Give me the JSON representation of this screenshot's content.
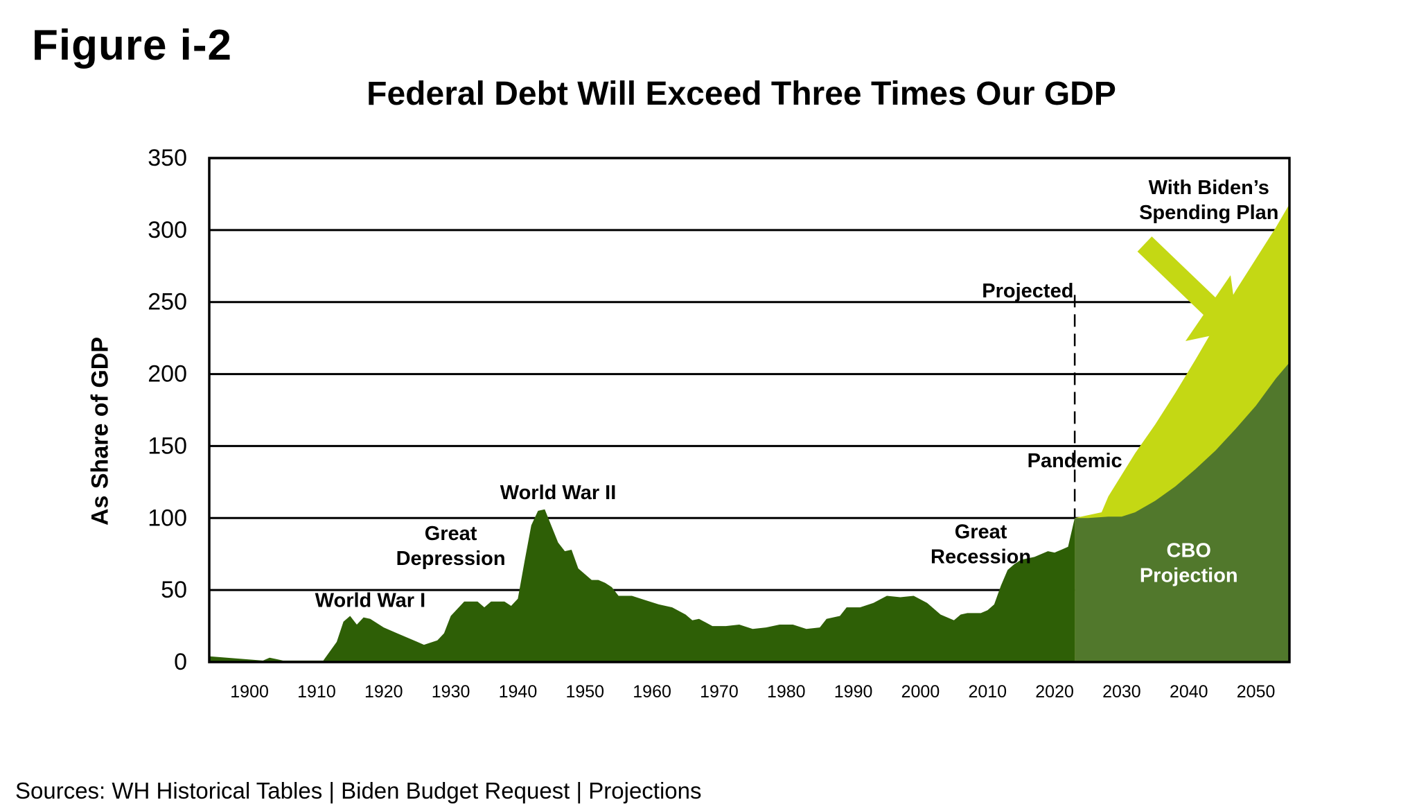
{
  "figure_label": "Figure i-2",
  "sources": "Sources: WH Historical Tables | Biden Budget Request | Projections",
  "colors": {
    "historical": "#2e5f06",
    "cbo_projection": "#51782c",
    "biden_plan": "#c4d814",
    "arrow": "#c4d814",
    "gridline": "#000000",
    "projection_divider": "#000000"
  },
  "chart_data": {
    "type": "area",
    "title": "Federal Debt Will Exceed Three Times Our GDP",
    "xlabel": "",
    "ylabel": "As Share of GDP",
    "xlim": [
      1894,
      2055
    ],
    "ylim": [
      0,
      350
    ],
    "x_ticks": [
      1900,
      1910,
      1920,
      1930,
      1940,
      1950,
      1960,
      1970,
      1980,
      1990,
      2000,
      2010,
      2020,
      2030,
      2040,
      2050
    ],
    "y_ticks": [
      0,
      50,
      100,
      150,
      200,
      250,
      300,
      350
    ],
    "grid": true,
    "projection_start": 2023,
    "series": [
      {
        "x": [
          1894,
          1902,
          1903,
          1904,
          1905,
          1910,
          1911,
          1913,
          1914,
          1915,
          1916,
          1917,
          1918,
          1920,
          1922,
          1924,
          1925,
          1926,
          1928,
          1929,
          1930,
          1932,
          1934,
          1935,
          1936,
          1938,
          1939,
          1940,
          1941,
          1942,
          1943,
          1944,
          1946,
          1947,
          1948,
          1949,
          1951,
          1952,
          1953,
          1954,
          1955,
          1957,
          1959,
          1961,
          1963,
          1965,
          1966,
          1967,
          1969,
          1971,
          1973,
          1975,
          1977,
          1979,
          1981,
          1983,
          1985,
          1986,
          1988,
          1989,
          1991,
          1993,
          1995,
          1997,
          1999,
          2001,
          2003,
          2005,
          2006,
          2007,
          2008,
          2009,
          2010,
          2011,
          2012,
          2013,
          2014,
          2015,
          2016,
          2017,
          2018,
          2019,
          2020,
          2021,
          2022,
          2023
        ],
        "values": [
          4,
          1,
          3,
          2,
          1,
          1,
          1,
          14,
          28,
          32,
          26,
          31,
          30,
          24,
          20,
          16,
          14,
          12,
          15,
          20,
          32,
          42,
          42,
          38,
          42,
          42,
          39,
          44,
          70,
          95,
          105,
          106,
          83,
          77,
          78,
          65,
          57,
          57,
          55,
          52,
          46,
          46,
          43,
          40,
          38,
          33,
          29,
          30,
          25,
          25,
          26,
          23,
          24,
          26,
          26,
          23,
          24,
          30,
          32,
          38,
          38,
          41,
          46,
          45,
          46,
          41,
          33,
          29,
          33,
          34,
          34,
          34,
          36,
          40,
          53,
          64,
          68,
          71,
          72,
          73,
          75,
          77,
          76,
          78,
          80,
          100
        ]
      },
      {
        "name": "CBO Projection",
        "x": [
          2023,
          2025,
          2028,
          2030,
          2032,
          2035,
          2038,
          2041,
          2044,
          2047,
          2050,
          2053,
          2055
        ],
        "values": [
          100,
          100,
          101,
          101,
          104,
          112,
          122,
          134,
          147,
          162,
          178,
          197,
          208
        ]
      },
      {
        "name": "With Biden’s Spending Plan",
        "x": [
          2023,
          2025,
          2027,
          2028,
          2030,
          2032,
          2035,
          2038,
          2041,
          2044,
          2047,
          2050,
          2053,
          2055
        ],
        "values": [
          100,
          102,
          104,
          115,
          130,
          145,
          165,
          187,
          210,
          234,
          258,
          280,
          302,
          318
        ]
      }
    ],
    "annotations": [
      {
        "text": "World War I",
        "x": 1918,
        "y": 43
      },
      {
        "text": "Great Depression",
        "x": 1930,
        "y": 81
      },
      {
        "text": "World War II",
        "x": 1946,
        "y": 118
      },
      {
        "text": "Great Recession",
        "x": 2009,
        "y": 82
      },
      {
        "text": "Pandemic",
        "x": 2023,
        "y": 140
      },
      {
        "text": "Projected",
        "x": 2016,
        "y": 258
      },
      {
        "text": "CBO Projection",
        "x": 2040,
        "y": 69
      },
      {
        "text": "With Biden’s Spending Plan",
        "x": 2043,
        "y": 321
      }
    ]
  }
}
